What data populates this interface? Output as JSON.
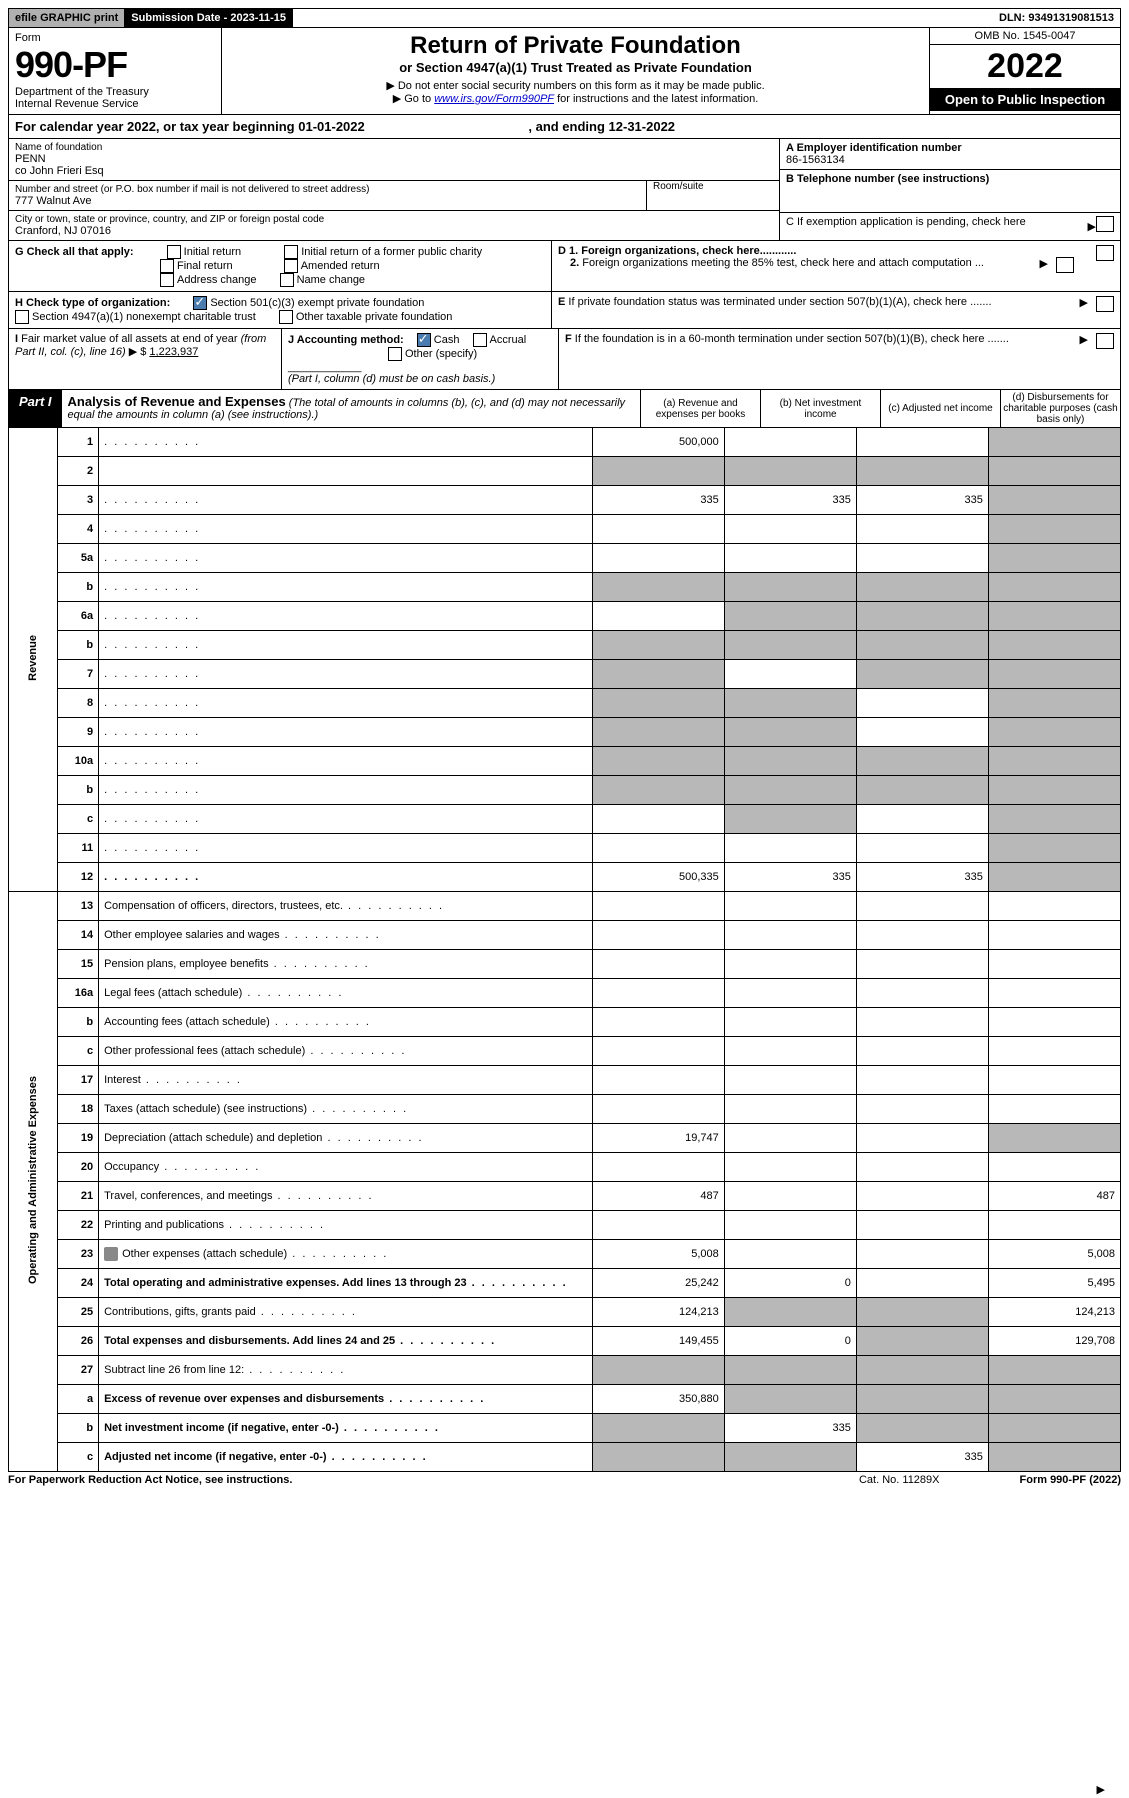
{
  "topbar": {
    "efile": "efile GRAPHIC print",
    "subdate_label": "Submission Date - ",
    "subdate": "2023-11-15",
    "dln_label": "DLN: ",
    "dln": "93491319081513"
  },
  "header": {
    "form_word": "Form",
    "form_num": "990-PF",
    "dept1": "Department of the Treasury",
    "dept2": "Internal Revenue Service",
    "title": "Return of Private Foundation",
    "subtitle": "or Section 4947(a)(1) Trust Treated as Private Foundation",
    "instr1": "▶ Do not enter social security numbers on this form as it may be made public.",
    "instr2a": "▶ Go to ",
    "instr2link": "www.irs.gov/Form990PF",
    "instr2b": " for instructions and the latest information.",
    "omb": "OMB No. 1545-0047",
    "year": "2022",
    "open": "Open to Public Inspection"
  },
  "calyear": {
    "prefix": "For calendar year 2022, or tax year beginning ",
    "begin": "01-01-2022",
    "mid": " , and ending ",
    "end": "12-31-2022"
  },
  "name": {
    "label": "Name of foundation",
    "line1": "PENN",
    "line2": "co John Frieri Esq"
  },
  "addr": {
    "label": "Number and street (or P.O. box number if mail is not delivered to street address)",
    "room_label": "Room/suite",
    "street": "777 Walnut Ave",
    "city_label": "City or town, state or province, country, and ZIP or foreign postal code",
    "city": "Cranford, NJ  07016"
  },
  "ein": {
    "label": "A Employer identification number",
    "value": "86-1563134"
  },
  "tel": {
    "label": "B Telephone number (see instructions)",
    "value": ""
  },
  "boxC": "C If exemption application is pending, check here",
  "boxD1": "D 1. Foreign organizations, check here............",
  "boxD2": "2. Foreign organizations meeting the 85% test, check here and attach computation ...",
  "boxE": "E If private foundation status was terminated under section 507(b)(1)(A), check here .......",
  "boxF": "F If the foundation is in a 60-month termination under section 507(b)(1)(B), check here .......",
  "G": {
    "label": "G Check all that apply:",
    "opts": [
      "Initial return",
      "Final return",
      "Address change",
      "Initial return of a former public charity",
      "Amended return",
      "Name change"
    ]
  },
  "H": {
    "label": "H Check type of organization:",
    "o1": "Section 501(c)(3) exempt private foundation",
    "o2": "Section 4947(a)(1) nonexempt charitable trust",
    "o3": "Other taxable private foundation"
  },
  "I": {
    "label": "I Fair market value of all assets at end of year (from Part II, col. (c), line 16) ▶ $",
    "value": "1,223,937"
  },
  "J": {
    "label": "J Accounting method:",
    "o1": "Cash",
    "o2": "Accrual",
    "o3": "Other (specify)",
    "note": "(Part I, column (d) must be on cash basis.)"
  },
  "part1": {
    "label": "Part I",
    "title": "Analysis of Revenue and Expenses",
    "note": " (The total of amounts in columns (b), (c), and (d) may not necessarily equal the amounts in column (a) (see instructions).)",
    "cols": {
      "a": "(a) Revenue and expenses per books",
      "b": "(b) Net investment income",
      "c": "(c) Adjusted net income",
      "d": "(d) Disbursements for charitable purposes (cash basis only)"
    }
  },
  "sections": {
    "rev": "Revenue",
    "exp": "Operating and Administrative Expenses"
  },
  "rows": [
    {
      "n": "1",
      "d": "",
      "a": "500,000",
      "b": "",
      "c": "",
      "dg": true
    },
    {
      "n": "2",
      "d": "",
      "nodots": true,
      "a": "",
      "b": "",
      "c": "",
      "ag": true,
      "bg": true,
      "cg": true,
      "dg": true
    },
    {
      "n": "3",
      "d": "",
      "a": "335",
      "b": "335",
      "c": "335",
      "dg": true
    },
    {
      "n": "4",
      "d": "",
      "a": "",
      "b": "",
      "c": "",
      "dg": true
    },
    {
      "n": "5a",
      "d": "",
      "a": "",
      "b": "",
      "c": "",
      "dg": true
    },
    {
      "n": "b",
      "d": "",
      "a": "",
      "b": "",
      "c": "",
      "ag": true,
      "bg": true,
      "cg": true,
      "dg": true
    },
    {
      "n": "6a",
      "d": "",
      "a": "",
      "b": "",
      "c": "",
      "bg": true,
      "cg": true,
      "dg": true
    },
    {
      "n": "b",
      "d": "",
      "a": "",
      "b": "",
      "c": "",
      "ag": true,
      "bg": true,
      "cg": true,
      "dg": true
    },
    {
      "n": "7",
      "d": "",
      "a": "",
      "b": "",
      "c": "",
      "ag": true,
      "cg": true,
      "dg": true
    },
    {
      "n": "8",
      "d": "",
      "a": "",
      "b": "",
      "c": "",
      "ag": true,
      "bg": true,
      "dg": true
    },
    {
      "n": "9",
      "d": "",
      "a": "",
      "b": "",
      "c": "",
      "ag": true,
      "bg": true,
      "dg": true
    },
    {
      "n": "10a",
      "d": "",
      "a": "",
      "b": "",
      "c": "",
      "ag": true,
      "bg": true,
      "cg": true,
      "dg": true
    },
    {
      "n": "b",
      "d": "",
      "a": "",
      "b": "",
      "c": "",
      "ag": true,
      "bg": true,
      "cg": true,
      "dg": true
    },
    {
      "n": "c",
      "d": "",
      "a": "",
      "b": "",
      "c": "",
      "bg": true,
      "dg": true
    },
    {
      "n": "11",
      "d": "",
      "a": "",
      "b": "",
      "c": "",
      "dg": true
    },
    {
      "n": "12",
      "d": "",
      "bold": true,
      "a": "500,335",
      "b": "335",
      "c": "335",
      "dg": true
    }
  ],
  "rows2": [
    {
      "n": "13",
      "d": "Compensation of officers, directors, trustees, etc."
    },
    {
      "n": "14",
      "d": "Other employee salaries and wages"
    },
    {
      "n": "15",
      "d": "Pension plans, employee benefits"
    },
    {
      "n": "16a",
      "d": "Legal fees (attach schedule)"
    },
    {
      "n": "b",
      "d": "Accounting fees (attach schedule)"
    },
    {
      "n": "c",
      "d": "Other professional fees (attach schedule)"
    },
    {
      "n": "17",
      "d": "Interest"
    },
    {
      "n": "18",
      "d": "Taxes (attach schedule) (see instructions)"
    },
    {
      "n": "19",
      "d": "Depreciation (attach schedule) and depletion",
      "a": "19,747",
      "dg": true
    },
    {
      "n": "20",
      "d": "Occupancy"
    },
    {
      "n": "21",
      "d": "Travel, conferences, and meetings",
      "a": "487",
      "d2": "487"
    },
    {
      "n": "22",
      "d": "Printing and publications"
    },
    {
      "n": "23",
      "d": "Other expenses (attach schedule)",
      "icon": true,
      "a": "5,008",
      "d2": "5,008"
    },
    {
      "n": "24",
      "d": "Total operating and administrative expenses. Add lines 13 through 23",
      "bold": true,
      "a": "25,242",
      "b": "0",
      "d2": "5,495"
    },
    {
      "n": "25",
      "d": "Contributions, gifts, grants paid",
      "a": "124,213",
      "bg": true,
      "cg": true,
      "d2": "124,213"
    },
    {
      "n": "26",
      "d": "Total expenses and disbursements. Add lines 24 and 25",
      "bold": true,
      "a": "149,455",
      "b": "0",
      "cg": true,
      "d2": "129,708"
    },
    {
      "n": "27",
      "d": "Subtract line 26 from line 12:",
      "ag": true,
      "bg": true,
      "cg": true,
      "dg": true
    },
    {
      "n": "a",
      "d": "Excess of revenue over expenses and disbursements",
      "bold": true,
      "a": "350,880",
      "bg": true,
      "cg": true,
      "dg": true
    },
    {
      "n": "b",
      "d": "Net investment income (if negative, enter -0-)",
      "bold": true,
      "ag": true,
      "b": "335",
      "cg": true,
      "dg": true
    },
    {
      "n": "c",
      "d": "Adjusted net income (if negative, enter -0-)",
      "bold": true,
      "ag": true,
      "bg": true,
      "c": "335",
      "dg": true
    }
  ],
  "footer": {
    "left": "For Paperwork Reduction Act Notice, see instructions.",
    "mid": "Cat. No. 11289X",
    "right": "Form 990-PF (2022)"
  }
}
